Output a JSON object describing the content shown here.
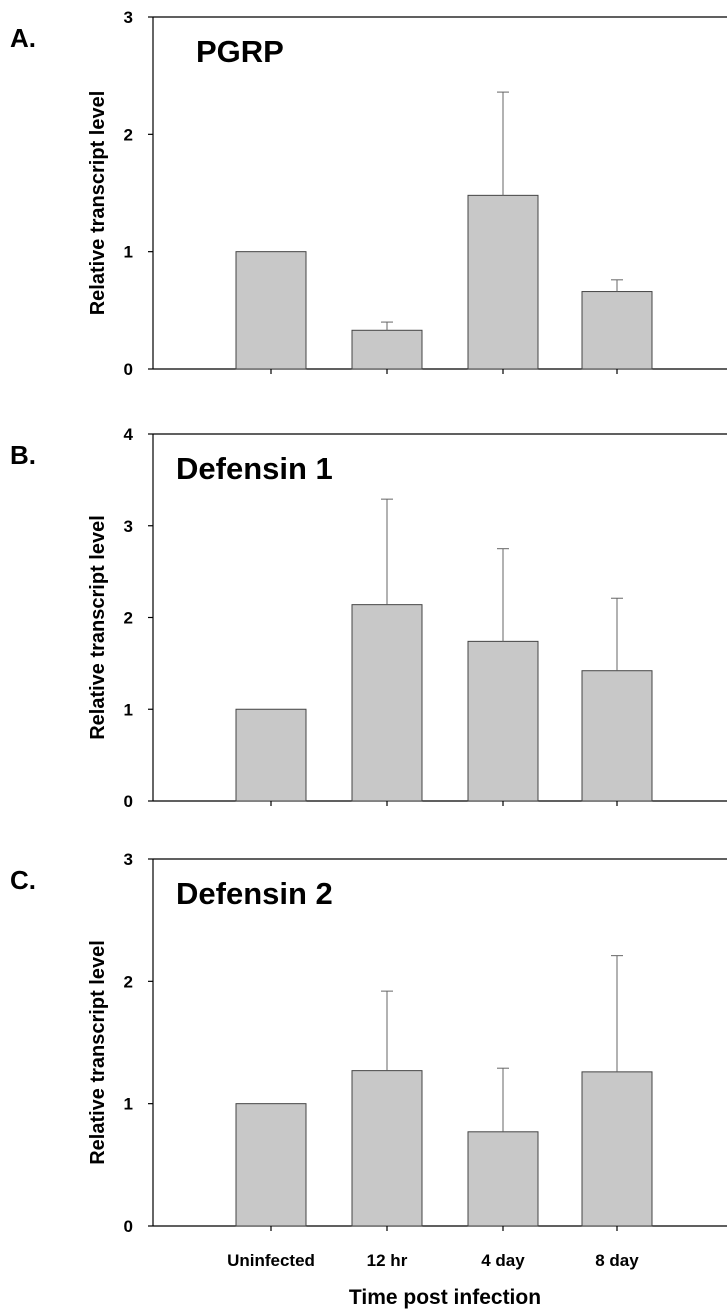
{
  "colors": {
    "bar_fill": "#c8c8c8",
    "bar_stroke": "#444444",
    "axis": "#000000",
    "error_bar": "#666666"
  },
  "chart_data": [
    {
      "type": "bar",
      "panel": "A.",
      "title": "PGRP",
      "categories": [
        "Uninfected",
        "12 hr",
        "4 day",
        "8 day"
      ],
      "values": [
        1.0,
        0.33,
        1.48,
        0.66
      ],
      "error_upper": [
        0,
        0.07,
        0.88,
        0.1
      ],
      "ylim": [
        0,
        3
      ],
      "yticks": [
        0,
        1,
        2,
        3
      ],
      "ylabel": "Relative transcript level",
      "xlabel": "",
      "grid": false
    },
    {
      "type": "bar",
      "panel": "B.",
      "title": "Defensin 1",
      "categories": [
        "Uninfected",
        "12 hr",
        "4 day",
        "8 day"
      ],
      "values": [
        1.0,
        2.14,
        1.74,
        1.42
      ],
      "error_upper": [
        0,
        1.15,
        1.01,
        0.79
      ],
      "ylim": [
        0,
        4
      ],
      "yticks": [
        0,
        1,
        2,
        3,
        4
      ],
      "ylabel": "Relative transcript level",
      "xlabel": "",
      "grid": false
    },
    {
      "type": "bar",
      "panel": "C.",
      "title": "Defensin 2",
      "categories": [
        "Uninfected",
        "12 hr",
        "4 day",
        "8 day"
      ],
      "values": [
        1.0,
        1.27,
        0.77,
        1.26
      ],
      "error_upper": [
        0,
        0.65,
        0.52,
        0.95
      ],
      "ylim": [
        0,
        3
      ],
      "yticks": [
        0,
        1,
        2,
        3
      ],
      "ylabel": "Relative transcript level",
      "xlabel": "Time post infection",
      "show_category_labels": true,
      "grid": false
    }
  ]
}
